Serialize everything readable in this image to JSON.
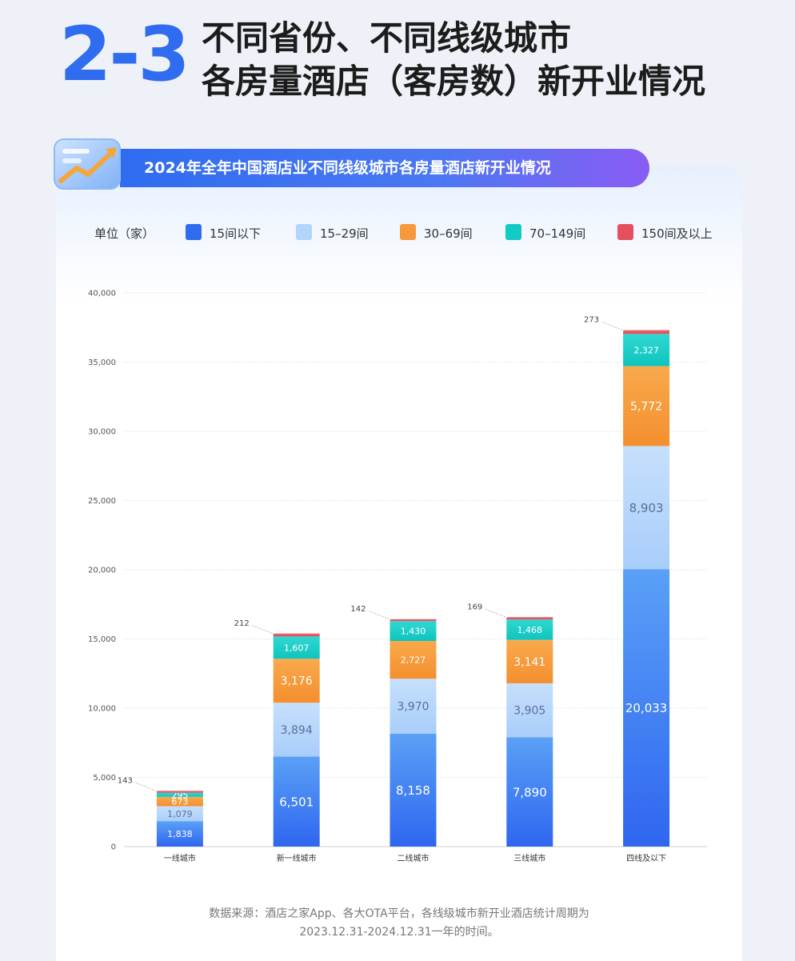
{
  "header": {
    "number": "2-3",
    "title_line1": "不同省份、不同线级城市",
    "title_line2": "各房量酒店（客房数）新开业情况"
  },
  "banner": {
    "title": "2024年全年中国酒店业不同线级城市各房量酒店新开业情况"
  },
  "legend": {
    "unit": "单位（家）",
    "items": [
      {
        "label": "15间以下",
        "color": "#2f6cf0"
      },
      {
        "label": "15–29间",
        "color": "#b3d4fb"
      },
      {
        "label": "30–69间",
        "color": "#f7993a"
      },
      {
        "label": "70–149间",
        "color": "#13cbc5"
      },
      {
        "label": "150间及以上",
        "color": "#e5505e"
      }
    ]
  },
  "chart_data": {
    "type": "bar",
    "stacked": true,
    "categories": [
      "一线城市",
      "新一线城市",
      "二线城市",
      "三线城市",
      "四线及以下"
    ],
    "series": [
      {
        "name": "15间以下",
        "values": [
          1838,
          6501,
          8158,
          7890,
          20033
        ],
        "color": "#2f6cf0"
      },
      {
        "name": "15–29间",
        "values": [
          1079,
          3894,
          3970,
          3905,
          8903
        ],
        "color": "#b3d4fb"
      },
      {
        "name": "30–69间",
        "values": [
          673,
          3176,
          2727,
          3141,
          5772
        ],
        "color": "#f7993a"
      },
      {
        "name": "70–149间",
        "values": [
          295,
          1607,
          1430,
          1468,
          2327
        ],
        "color": "#13cbc5"
      },
      {
        "name": "150间及以上",
        "values": [
          143,
          212,
          142,
          169,
          273
        ],
        "color": "#e5505e"
      }
    ],
    "yticks": [
      "0",
      "5,000",
      "10,000",
      "15,000",
      "20,000",
      "25,000",
      "30,000",
      "35,000",
      "40,000"
    ],
    "ylim": [
      0,
      40000
    ],
    "grid": true,
    "legend_position": "top"
  },
  "footnote": {
    "line1": "数据来源：酒店之家App、各大OTA平台，各线级城市新开业酒店统计周期为",
    "line2": "2023.12.31-2024.12.31一年的时间。"
  }
}
